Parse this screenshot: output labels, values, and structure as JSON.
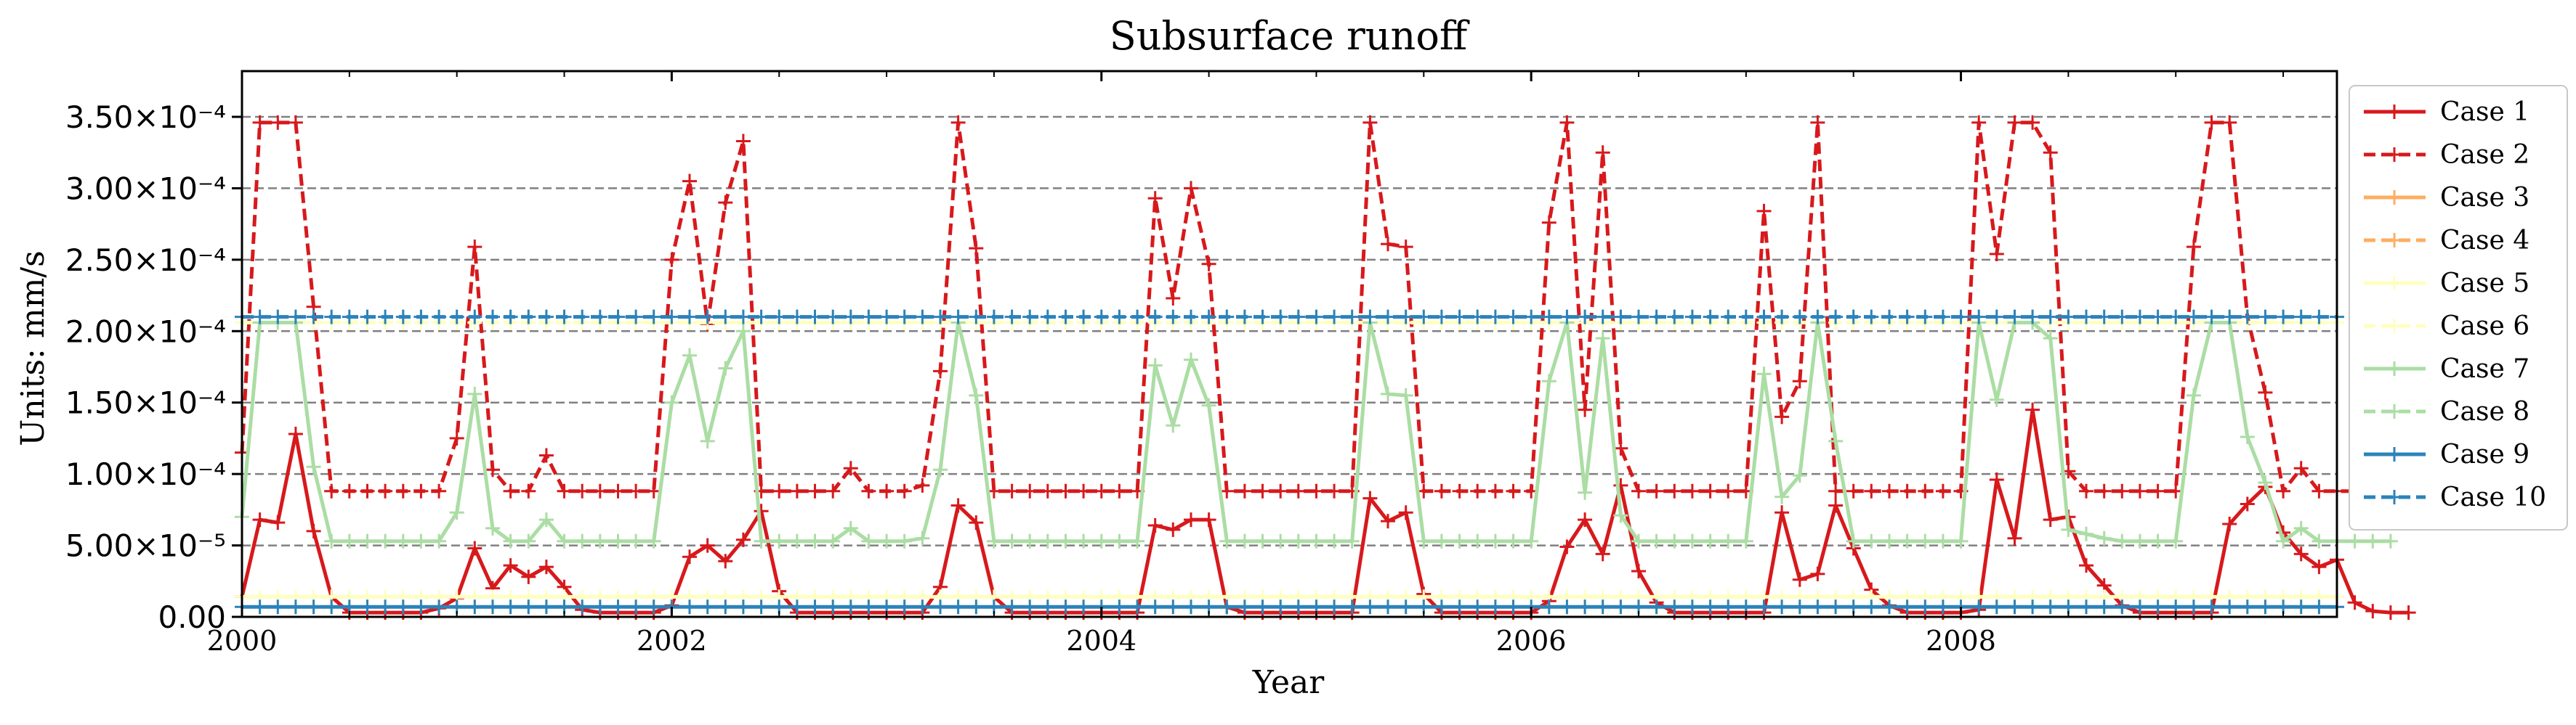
{
  "chart_data": {
    "type": "line",
    "title": "Subsurface runoff",
    "xlabel": "Year",
    "ylabel": "Units: mm/s",
    "xlim": [
      2000.0,
      2009.75
    ],
    "ylim": [
      0,
      0.000382
    ],
    "xticks": [
      {
        "value": 2000,
        "label": "2000"
      },
      {
        "value": 2002,
        "label": "2002"
      },
      {
        "value": 2004,
        "label": "2004"
      },
      {
        "value": 2006,
        "label": "2006"
      },
      {
        "value": 2008,
        "label": "2008"
      }
    ],
    "yticks": [
      {
        "value": 0,
        "label": "0.00"
      },
      {
        "value": 5e-05,
        "label": "5.00×10⁻⁵"
      },
      {
        "value": 0.0001,
        "label": "1.00×10⁻⁴"
      },
      {
        "value": 0.00015,
        "label": "1.50×10⁻⁴"
      },
      {
        "value": 0.0002,
        "label": "2.00×10⁻⁴"
      },
      {
        "value": 0.00025,
        "label": "2.50×10⁻⁴"
      },
      {
        "value": 0.0003,
        "label": "3.00×10⁻⁴"
      },
      {
        "value": 0.00035,
        "label": "3.50×10⁻⁴"
      }
    ],
    "grid": "y-dashed",
    "legend_position": "outside-right",
    "x_start": 2000.0,
    "x_step_months": 1,
    "series": [
      {
        "name": "Case 1",
        "color": "#d7191c",
        "dash": "solid",
        "values": [
          1.4e-05,
          6.8e-05,
          6.6e-05,
          0.000128,
          6e-05,
          1.4e-05,
          3e-06,
          3e-06,
          3e-06,
          3e-06,
          3e-06,
          6e-06,
          1.3e-05,
          4.8e-05,
          2e-05,
          3.6e-05,
          2.8e-05,
          3.5e-05,
          2.1e-05,
          5e-06,
          3e-06,
          3e-06,
          3e-06,
          3e-06,
          8e-06,
          4.2e-05,
          5e-05,
          3.9e-05,
          5.4e-05,
          7.4e-05,
          1.8e-05,
          3e-06,
          3e-06,
          3e-06,
          3e-06,
          3e-06,
          3e-06,
          3e-06,
          3e-06,
          2.1e-05,
          7.8e-05,
          6.6e-05,
          1.4e-05,
          3e-06,
          3e-06,
          3e-06,
          3e-06,
          3e-06,
          3e-06,
          3e-06,
          3e-06,
          6.4e-05,
          6.1e-05,
          6.8e-05,
          6.8e-05,
          7e-06,
          3e-06,
          3e-06,
          3e-06,
          3e-06,
          3e-06,
          3e-06,
          3e-06,
          8.3e-05,
          6.7e-05,
          7.3e-05,
          1.6e-05,
          3e-06,
          3e-06,
          3e-06,
          3e-06,
          3e-06,
          3e-06,
          1.1e-05,
          4.9e-05,
          6.8e-05,
          4.4e-05,
          9.2e-05,
          3.2e-05,
          1e-05,
          3e-06,
          3e-06,
          3e-06,
          3e-06,
          3e-06,
          3e-06,
          7.3e-05,
          2.6e-05,
          3e-05,
          7.8e-05,
          4.8e-05,
          1.9e-05,
          8e-06,
          3e-06,
          3e-06,
          3e-06,
          3e-06,
          5e-06,
          9.6e-05,
          5.5e-05,
          0.000145,
          6.8e-05,
          7e-05,
          3.6e-05,
          2.2e-05,
          8e-06,
          3e-06,
          3e-06,
          3e-06,
          3e-06,
          3e-06,
          6.5e-05,
          7.9e-05,
          9.1e-05,
          5.9e-05,
          4.4e-05,
          3.5e-05,
          4e-05,
          1e-05,
          4e-06,
          3e-06,
          3e-06
        ]
      },
      {
        "name": "Case 2",
        "color": "#d7191c",
        "dash": "dashed",
        "values": [
          0.000115,
          0.000346,
          0.000346,
          0.000346,
          0.000217,
          8.8e-05,
          8.8e-05,
          8.8e-05,
          8.8e-05,
          8.8e-05,
          8.8e-05,
          8.8e-05,
          0.000125,
          0.000259,
          0.000103,
          8.8e-05,
          8.8e-05,
          0.000113,
          8.8e-05,
          8.8e-05,
          8.8e-05,
          8.8e-05,
          8.8e-05,
          8.8e-05,
          0.00025,
          0.000305,
          0.000205,
          0.00029,
          0.000333,
          8.8e-05,
          8.8e-05,
          8.8e-05,
          8.8e-05,
          8.8e-05,
          0.000104,
          8.8e-05,
          8.8e-05,
          8.8e-05,
          9.2e-05,
          0.000172,
          0.000346,
          0.000258,
          8.8e-05,
          8.8e-05,
          8.8e-05,
          8.8e-05,
          8.8e-05,
          8.8e-05,
          8.8e-05,
          8.8e-05,
          8.8e-05,
          0.000293,
          0.000223,
          0.0003,
          0.000247,
          8.8e-05,
          8.8e-05,
          8.8e-05,
          8.8e-05,
          8.8e-05,
          8.8e-05,
          8.8e-05,
          8.8e-05,
          0.000346,
          0.000261,
          0.000259,
          8.8e-05,
          8.8e-05,
          8.8e-05,
          8.8e-05,
          8.8e-05,
          8.8e-05,
          8.8e-05,
          0.000276,
          0.000346,
          0.000145,
          0.000325,
          0.000118,
          8.8e-05,
          8.8e-05,
          8.8e-05,
          8.8e-05,
          8.8e-05,
          8.8e-05,
          8.8e-05,
          0.000284,
          0.00014,
          0.000165,
          0.000346,
          8.8e-05,
          8.8e-05,
          8.8e-05,
          8.8e-05,
          8.8e-05,
          8.8e-05,
          8.8e-05,
          8.8e-05,
          0.000346,
          0.000254,
          0.000346,
          0.000346,
          0.000325,
          0.000102,
          8.8e-05,
          8.8e-05,
          8.8e-05,
          8.8e-05,
          8.8e-05,
          8.8e-05,
          0.000259,
          0.000346,
          0.000346,
          0.00021,
          0.000157,
          8.8e-05,
          0.000104,
          8.8e-05,
          8.8e-05,
          8.8e-05,
          8.8e-05,
          8.8e-05
        ]
      },
      {
        "name": "Case 3",
        "color": "#fdae61",
        "dash": "solid",
        "values": []
      },
      {
        "name": "Case 4",
        "color": "#fdae61",
        "dash": "dashed",
        "values": []
      },
      {
        "name": "Case 5",
        "color": "#ffffbf",
        "dash": "solid",
        "constant": 1.4e-05
      },
      {
        "name": "Case 6",
        "color": "#ffffbf",
        "dash": "dashed",
        "constant": 0.000206
      },
      {
        "name": "Case 7",
        "color": "#abdda4",
        "dash": "solid",
        "values": [
          7e-05,
          0.000206,
          0.000206,
          0.000206,
          0.000105,
          5.3e-05,
          5.3e-05,
          5.3e-05,
          5.3e-05,
          5.3e-05,
          5.3e-05,
          5.3e-05,
          7.3e-05,
          0.000156,
          6.2e-05,
          5.3e-05,
          5.3e-05,
          6.8e-05,
          5.3e-05,
          5.3e-05,
          5.3e-05,
          5.3e-05,
          5.3e-05,
          5.3e-05,
          0.00015,
          0.000183,
          0.000123,
          0.000174,
          0.0002,
          5.3e-05,
          5.3e-05,
          5.3e-05,
          5.3e-05,
          5.3e-05,
          6.2e-05,
          5.3e-05,
          5.3e-05,
          5.3e-05,
          5.5e-05,
          0.000103,
          0.000206,
          0.000155,
          5.3e-05,
          5.3e-05,
          5.3e-05,
          5.3e-05,
          5.3e-05,
          5.3e-05,
          5.3e-05,
          5.3e-05,
          5.3e-05,
          0.000176,
          0.000134,
          0.00018,
          0.000148,
          5.3e-05,
          5.3e-05,
          5.3e-05,
          5.3e-05,
          5.3e-05,
          5.3e-05,
          5.3e-05,
          5.3e-05,
          0.000206,
          0.000156,
          0.000155,
          5.3e-05,
          5.3e-05,
          5.3e-05,
          5.3e-05,
          5.3e-05,
          5.3e-05,
          5.3e-05,
          0.000165,
          0.000206,
          8.7e-05,
          0.000195,
          7.1e-05,
          5.3e-05,
          5.3e-05,
          5.3e-05,
          5.3e-05,
          5.3e-05,
          5.3e-05,
          5.3e-05,
          0.00017,
          8.4e-05,
          9.9e-05,
          0.000206,
          0.000123,
          5.3e-05,
          5.3e-05,
          5.3e-05,
          5.3e-05,
          5.3e-05,
          5.3e-05,
          5.3e-05,
          0.000206,
          0.000152,
          0.000206,
          0.000206,
          0.000195,
          6.1e-05,
          5.8e-05,
          5.5e-05,
          5.3e-05,
          5.3e-05,
          5.3e-05,
          5.3e-05,
          0.000155,
          0.000206,
          0.000206,
          0.000126,
          9.4e-05,
          5.3e-05,
          6.2e-05,
          5.3e-05,
          5.3e-05,
          5.3e-05,
          5.3e-05,
          5.3e-05
        ]
      },
      {
        "name": "Case 8",
        "color": "#abdda4",
        "dash": "dashed",
        "values": []
      },
      {
        "name": "Case 9",
        "color": "#2b83ba",
        "dash": "solid",
        "constant": 7e-06
      },
      {
        "name": "Case 10",
        "color": "#2b83ba",
        "dash": "dashed",
        "constant": 0.00021
      }
    ]
  }
}
